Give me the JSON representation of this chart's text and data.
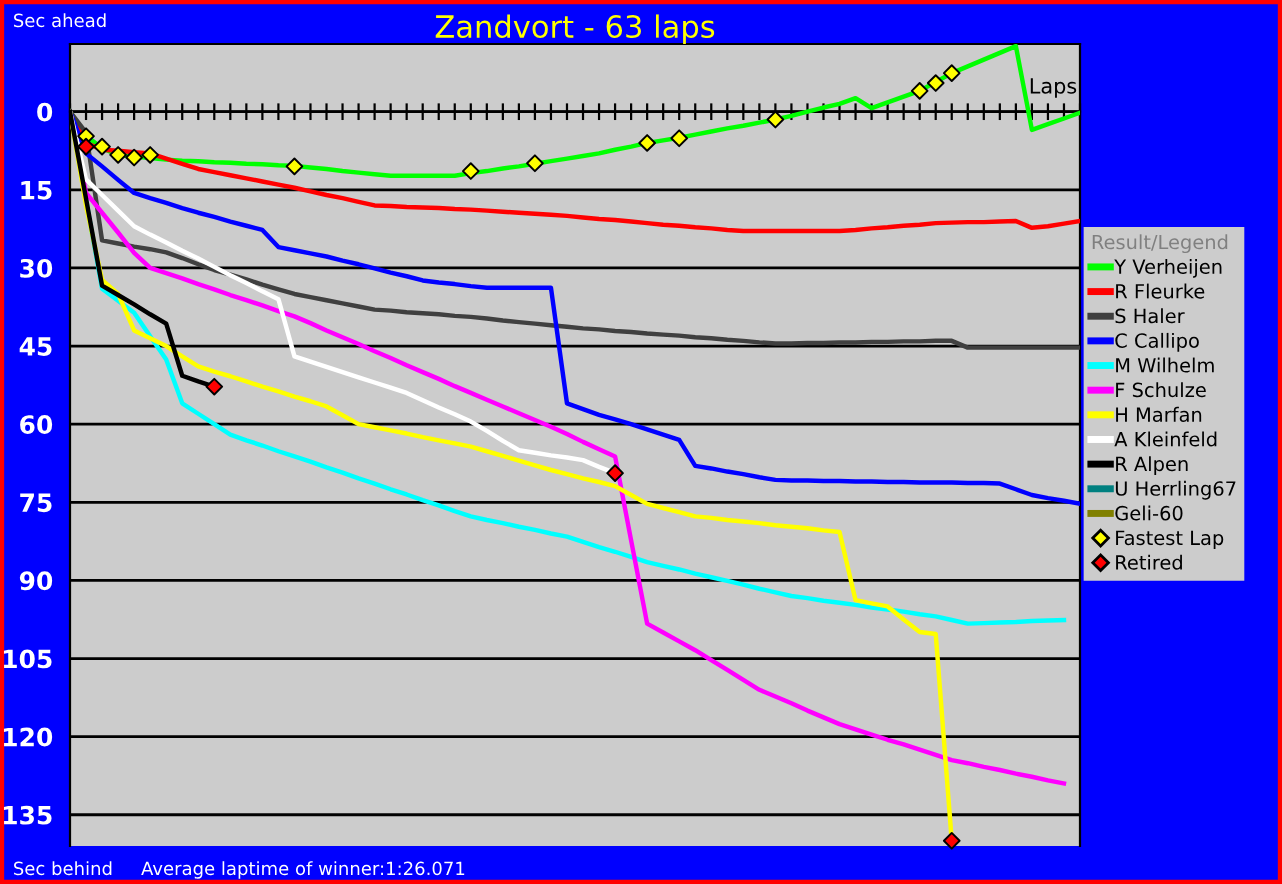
{
  "chart_data": {
    "type": "line",
    "title": "Zandvort - 63 laps",
    "xlabel": "Laps",
    "legend_title": "Result/Legend",
    "annotations": [
      "Sec ahead",
      "Sec behind",
      "Average laptime of winner:1:26.071"
    ],
    "categories": [
      null,
      null,
      null,
      null,
      null,
      null,
      null,
      null,
      null,
      null,
      null,
      null,
      null,
      null,
      null,
      null,
      null,
      null,
      null,
      null,
      null,
      null,
      null,
      null,
      null,
      null,
      null,
      null,
      null,
      null,
      null,
      null,
      null,
      null,
      null,
      null,
      null,
      null,
      null,
      null,
      null,
      null,
      null,
      null,
      null,
      null,
      null,
      null,
      null,
      null,
      null,
      null,
      null,
      null,
      null,
      null,
      null,
      null,
      null,
      null,
      null,
      null,
      null,
      null
    ],
    "ylim": [
      141,
      -13
    ],
    "yticks": [
      0,
      15,
      30,
      45,
      60,
      75,
      90,
      105,
      120,
      135
    ],
    "grid": "y",
    "legend": "right",
    "tick_labels": "y",
    "marker": "none",
    "line_style": "solid",
    "series": [
      {
        "name": "Y Verheijen",
        "color": "#00ff00",
        "values": [
          0,
          4.6,
          7,
          8.3,
          8.6,
          8.9,
          9.2,
          9.4,
          9.5,
          9.7,
          9.8,
          10,
          10.1,
          10.3,
          10.4,
          10.7,
          11,
          11.4,
          11.7,
          12,
          12.3,
          12.3,
          12.3,
          12.3,
          12.3,
          11.8,
          11.4,
          10.9,
          10.5,
          10,
          9.5,
          9,
          8.5,
          8,
          7.3,
          6.7,
          6,
          5.5,
          5,
          4.4,
          3.8,
          3.2,
          2.7,
          2.1,
          1.5,
          0.8,
          0,
          -0.8,
          -1.5,
          -2.6,
          -0.7,
          -1.8,
          -2.9,
          -4,
          -5.7,
          -7.4,
          -8.7,
          -10,
          -11.3,
          -12.6,
          3.5,
          2.4,
          1.3,
          0.2
        ]
      },
      {
        "name": "R Fleurke",
        "color": "#ff0000",
        "values": [
          0,
          6,
          7.3,
          7.5,
          7.8,
          8,
          9,
          10,
          11,
          11.6,
          12.2,
          12.8,
          13.4,
          14,
          14.6,
          15.3,
          16,
          16.6,
          17.3,
          18,
          18.1,
          18.3,
          18.4,
          18.5,
          18.7,
          18.8,
          19,
          19.2,
          19.4,
          19.6,
          19.8,
          20,
          20.3,
          20.6,
          20.8,
          21.1,
          21.4,
          21.7,
          21.9,
          22.2,
          22.4,
          22.7,
          22.9,
          22.9,
          22.9,
          22.9,
          22.9,
          22.9,
          22.9,
          22.7,
          22.4,
          22.2,
          21.9,
          21.7,
          21.4,
          21.3,
          21.2,
          21.2,
          21.1,
          21,
          22.3,
          22,
          21.5,
          21
        ]
      },
      {
        "name": "S Haler",
        "color": "#404040",
        "values": [
          0,
          4,
          24.7,
          25.3,
          25.9,
          26.4,
          27,
          28.1,
          29.3,
          30.4,
          31.3,
          32.2,
          33.2,
          34.1,
          35,
          35.6,
          36.2,
          36.8,
          37.4,
          38,
          38.2,
          38.5,
          38.7,
          38.9,
          39.2,
          39.4,
          39.7,
          40.1,
          40.4,
          40.7,
          41,
          41.3,
          41.6,
          41.8,
          42.1,
          42.3,
          42.6,
          42.8,
          43,
          43.3,
          43.5,
          43.8,
          44,
          44.3,
          44.5,
          44.5,
          44.4,
          44.4,
          44.3,
          44.3,
          44.2,
          44.2,
          44.1,
          44.1,
          44,
          44,
          45.3,
          45.3,
          45.3,
          45.3,
          45.3,
          45.3,
          45.3,
          45.3
        ]
      },
      {
        "name": "C Callipo",
        "color": "#0000ff",
        "values": [
          0,
          8,
          10.5,
          13.1,
          15.6,
          16.6,
          17.5,
          18.5,
          19.4,
          20.2,
          21.1,
          21.9,
          22.7,
          26,
          26.6,
          27.2,
          27.8,
          28.6,
          29.3,
          30.1,
          30.9,
          31.6,
          32.4,
          32.8,
          33.1,
          33.5,
          33.8,
          33.8,
          33.8,
          33.8,
          33.8,
          56,
          57.1,
          58.2,
          59.1,
          60,
          61,
          62,
          63,
          68,
          68.5,
          69.1,
          69.6,
          70.2,
          70.7,
          70.8,
          70.8,
          70.9,
          70.9,
          71,
          71,
          71.1,
          71.1,
          71.2,
          71.2,
          71.2,
          71.3,
          71.3,
          71.4,
          72.5,
          73.6,
          74.2,
          74.7,
          75.3
        ]
      },
      {
        "name": "M Wilhelm",
        "color": "#00ffff",
        "values": [
          0,
          17,
          34,
          36.3,
          38.6,
          43.1,
          47.6,
          56,
          58,
          60,
          62,
          63.1,
          64.1,
          65.2,
          66.2,
          67.2,
          68.3,
          69.3,
          70.4,
          71.4,
          72.5,
          73.5,
          74.6,
          75.6,
          76.7,
          77.7,
          78.4,
          79,
          79.7,
          80.3,
          81,
          81.6,
          82.6,
          83.6,
          84.5,
          85.5,
          86.5,
          87.2,
          87.9,
          88.7,
          89.4,
          90.1,
          90.8,
          91.6,
          92.3,
          93,
          93.4,
          93.9,
          94.3,
          94.7,
          95.2,
          95.6,
          96,
          96.5,
          96.9,
          97.6,
          98.3,
          98.2,
          98.1,
          98,
          97.8,
          97.7,
          97.6,
          null
        ]
      },
      {
        "name": "F Schulze",
        "color": "#ff00ff",
        "values": [
          0,
          15.6,
          19.4,
          23.2,
          27.1,
          30,
          31,
          32,
          33.1,
          34.1,
          35.2,
          36.2,
          37.2,
          38.3,
          39.3,
          40.6,
          42,
          43.3,
          44.6,
          46,
          47.3,
          48.7,
          50,
          51.3,
          52.7,
          54,
          55.3,
          56.6,
          57.9,
          59.2,
          60.5,
          61.9,
          63.4,
          64.8,
          66.2,
          82.3,
          98.3,
          100,
          101.7,
          103.4,
          105.3,
          107.2,
          109.1,
          111,
          112.3,
          113.6,
          115,
          116.3,
          117.6,
          118.6,
          119.6,
          120.6,
          121.5,
          122.5,
          123.5,
          124.5,
          125.1,
          125.8,
          126.4,
          127.1,
          127.7,
          128.4,
          129,
          null
        ]
      },
      {
        "name": "H Marfan",
        "color": "#ffff00",
        "values": [
          0,
          18,
          32.3,
          35,
          42,
          43.5,
          45,
          47,
          48.9,
          49.9,
          50.8,
          51.8,
          52.8,
          53.7,
          54.7,
          55.6,
          56.6,
          58.3,
          60,
          60.6,
          61.2,
          61.8,
          62.5,
          63.1,
          63.7,
          64.3,
          65.2,
          66.1,
          67,
          67.9,
          68.8,
          69.6,
          70.4,
          71.1,
          71.9,
          73.6,
          75.3,
          76.1,
          76.9,
          77.7,
          78,
          78.4,
          78.7,
          79,
          79.4,
          79.7,
          80,
          80.4,
          80.7,
          93.8,
          94.4,
          95,
          97.5,
          99.9,
          100.3,
          140,
          null,
          null,
          null,
          null,
          null,
          null,
          null,
          null
        ]
      },
      {
        "name": "A Kleinfeld",
        "color": "#ffffff",
        "values": [
          0,
          13,
          16,
          19,
          22,
          23.6,
          25.1,
          26.7,
          28.2,
          29.8,
          31.4,
          32.9,
          34.5,
          36,
          47,
          48,
          49,
          50,
          51,
          52,
          53,
          54,
          55.4,
          56.8,
          58.1,
          59.5,
          61.3,
          63.2,
          65,
          65.5,
          66,
          66.4,
          66.9,
          68.2,
          69.4,
          null,
          null,
          null,
          null,
          null,
          null,
          null,
          null,
          null,
          null,
          null,
          null,
          null,
          null,
          null,
          null,
          null,
          null,
          null,
          null,
          null,
          null,
          null,
          null,
          null,
          null,
          null,
          null,
          null
        ]
      },
      {
        "name": "R Alpen",
        "color": "#000000",
        "values": [
          0,
          16.7,
          33.4,
          35.2,
          37,
          38.9,
          40.7,
          50.7,
          51.8,
          52.8,
          null,
          null,
          null,
          null,
          null,
          null,
          null,
          null,
          null,
          null,
          null,
          null,
          null,
          null,
          null,
          null,
          null,
          null,
          null,
          null,
          null,
          null,
          null,
          null,
          null,
          null,
          null,
          null,
          null,
          null,
          null,
          null,
          null,
          null,
          null,
          null,
          null,
          null,
          null,
          null,
          null,
          null,
          null,
          null,
          null,
          null,
          null,
          null,
          null,
          null,
          null,
          null,
          null,
          null
        ]
      },
      {
        "name": "U Herrling67",
        "color": "#008080",
        "values": [
          null,
          null,
          null,
          null,
          null,
          null,
          null,
          null,
          null,
          null,
          null,
          null,
          null,
          null,
          null,
          null,
          null,
          null,
          null,
          null,
          null,
          null,
          null,
          null,
          null,
          null,
          null,
          null,
          null,
          null,
          null,
          null,
          null,
          null,
          null,
          null,
          null,
          null,
          null,
          null,
          null,
          null,
          null,
          null,
          null,
          null,
          null,
          null,
          null,
          null,
          null,
          null,
          null,
          null,
          null,
          null,
          null,
          null,
          null,
          null,
          null,
          null,
          null,
          null
        ]
      },
      {
        "name": "Geli-60",
        "color": "#808000",
        "values": [
          null,
          null,
          null,
          null,
          null,
          null,
          null,
          null,
          null,
          null,
          null,
          null,
          null,
          null,
          null,
          null,
          null,
          null,
          null,
          null,
          null,
          null,
          null,
          null,
          null,
          null,
          null,
          null,
          null,
          null,
          null,
          null,
          null,
          null,
          null,
          null,
          null,
          null,
          null,
          null,
          null,
          null,
          null,
          null,
          null,
          null,
          null,
          null,
          null,
          null,
          null,
          null,
          null,
          null,
          null,
          null,
          null,
          null,
          null,
          null,
          null,
          null,
          null,
          null
        ]
      },
      {
        "name": "Fastest Lap",
        "type": "scatter",
        "marker": "diamond",
        "color": "#ffff00",
        "values": [
          null,
          4.7,
          6.7,
          8.3,
          8.8,
          8.3,
          null,
          null,
          null,
          null,
          null,
          null,
          null,
          null,
          10.5,
          null,
          null,
          null,
          null,
          null,
          null,
          null,
          null,
          null,
          null,
          11.4,
          null,
          null,
          null,
          9.9,
          null,
          null,
          null,
          null,
          null,
          null,
          6,
          null,
          5.1,
          null,
          null,
          null,
          null,
          null,
          1.5,
          null,
          null,
          null,
          null,
          null,
          null,
          null,
          null,
          -4,
          -5.5,
          -7.4,
          null,
          null,
          null,
          null,
          null,
          null,
          null,
          null
        ]
      },
      {
        "name": "Retired",
        "type": "scatter",
        "marker": "diamond",
        "color": "#ff0000",
        "values": [
          null,
          6.7,
          null,
          null,
          null,
          null,
          null,
          null,
          null,
          52.8,
          null,
          null,
          null,
          null,
          null,
          null,
          null,
          null,
          null,
          null,
          null,
          null,
          null,
          null,
          null,
          null,
          null,
          null,
          null,
          null,
          null,
          null,
          null,
          null,
          69.4,
          null,
          null,
          null,
          null,
          null,
          null,
          null,
          null,
          null,
          null,
          null,
          null,
          null,
          null,
          null,
          null,
          null,
          null,
          null,
          null,
          140,
          null,
          null,
          null,
          null,
          null,
          null,
          null,
          null
        ]
      }
    ]
  }
}
